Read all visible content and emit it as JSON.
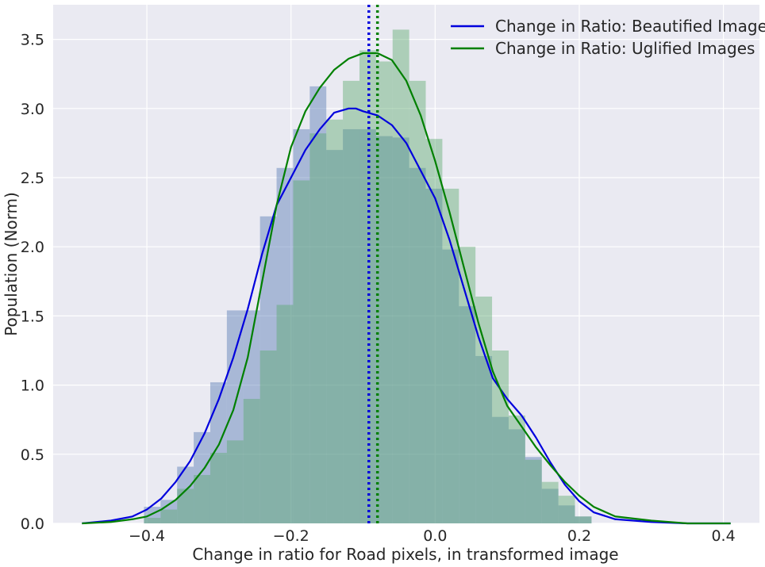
{
  "chart_data": {
    "type": "histogram",
    "xlabel": "Change in ratio for  Road pixels, in transformed image",
    "ylabel": "Population (Norm)",
    "xlim": [
      -0.53,
      0.45
    ],
    "ylim": [
      0,
      3.75
    ],
    "xticks": [
      -0.4,
      -0.2,
      0.0,
      0.2,
      0.4
    ],
    "xtick_labels": [
      "−0.4",
      "−0.2",
      "0.0",
      "0.2",
      "0.4"
    ],
    "yticks": [
      0.0,
      0.5,
      1.0,
      1.5,
      2.0,
      2.5,
      3.0,
      3.5
    ],
    "ytick_labels": [
      "0.0",
      "0.5",
      "1.0",
      "1.5",
      "2.0",
      "2.5",
      "3.0",
      "3.5"
    ],
    "grid": true,
    "legend_position": "upper-right",
    "bin_edges": [
      -0.404,
      -0.381,
      -0.358,
      -0.335,
      -0.312,
      -0.289,
      -0.266,
      -0.243,
      -0.22,
      -0.197,
      -0.174,
      -0.151,
      -0.128,
      -0.105,
      -0.082,
      -0.059,
      -0.036,
      -0.013,
      0.01,
      0.033,
      0.056,
      0.079,
      0.102,
      0.125,
      0.148,
      0.171,
      0.194,
      0.217
    ],
    "series": [
      {
        "name": "Change in Ratio: Beautified Images",
        "line_color": "#0000dd",
        "bar_color": "#4c72b0",
        "mean": -0.092,
        "hist": [
          0.12,
          0.17,
          0.41,
          0.66,
          1.02,
          1.54,
          1.54,
          2.22,
          2.57,
          2.85,
          3.16,
          2.7,
          2.85,
          2.85,
          2.8,
          2.79,
          2.57,
          2.42,
          1.98,
          1.57,
          1.21,
          0.77,
          0.68,
          0.48,
          0.25,
          0.13,
          0.05
        ],
        "kde_x": [
          -0.49,
          -0.45,
          -0.42,
          -0.4,
          -0.38,
          -0.36,
          -0.34,
          -0.32,
          -0.3,
          -0.28,
          -0.26,
          -0.24,
          -0.22,
          -0.2,
          -0.18,
          -0.16,
          -0.14,
          -0.12,
          -0.11,
          -0.1,
          -0.08,
          -0.06,
          -0.04,
          -0.02,
          0.0,
          0.02,
          0.04,
          0.06,
          0.08,
          0.1,
          0.12,
          0.14,
          0.16,
          0.18,
          0.2,
          0.22,
          0.25,
          0.3,
          0.35,
          0.41
        ],
        "kde_y": [
          0.0,
          0.02,
          0.05,
          0.1,
          0.18,
          0.3,
          0.45,
          0.65,
          0.9,
          1.2,
          1.55,
          1.95,
          2.3,
          2.5,
          2.7,
          2.85,
          2.97,
          3.0,
          3.0,
          2.98,
          2.95,
          2.88,
          2.75,
          2.55,
          2.35,
          2.05,
          1.7,
          1.35,
          1.05,
          0.9,
          0.78,
          0.62,
          0.44,
          0.28,
          0.16,
          0.08,
          0.03,
          0.01,
          0.0,
          0.0
        ]
      },
      {
        "name": "Change in Ratio: Uglified Images",
        "line_color": "#008000",
        "bar_color": "#55a868",
        "mean": -0.08,
        "hist": [
          0.04,
          0.1,
          0.25,
          0.35,
          0.51,
          0.6,
          0.9,
          1.25,
          1.58,
          2.48,
          2.82,
          2.92,
          3.2,
          3.42,
          3.34,
          3.57,
          3.2,
          2.78,
          2.42,
          2.0,
          1.64,
          1.25,
          0.78,
          0.46,
          0.3,
          0.2,
          0.05
        ],
        "kde_x": [
          -0.49,
          -0.45,
          -0.42,
          -0.4,
          -0.38,
          -0.36,
          -0.34,
          -0.32,
          -0.3,
          -0.28,
          -0.26,
          -0.24,
          -0.22,
          -0.2,
          -0.18,
          -0.16,
          -0.14,
          -0.12,
          -0.1,
          -0.08,
          -0.06,
          -0.04,
          -0.02,
          0.0,
          0.02,
          0.04,
          0.06,
          0.08,
          0.1,
          0.12,
          0.14,
          0.16,
          0.18,
          0.2,
          0.22,
          0.25,
          0.3,
          0.35,
          0.41
        ],
        "kde_y": [
          0.0,
          0.01,
          0.03,
          0.05,
          0.1,
          0.17,
          0.27,
          0.4,
          0.57,
          0.82,
          1.2,
          1.75,
          2.3,
          2.72,
          2.98,
          3.15,
          3.28,
          3.36,
          3.4,
          3.4,
          3.35,
          3.2,
          2.95,
          2.62,
          2.25,
          1.85,
          1.45,
          1.1,
          0.85,
          0.7,
          0.55,
          0.42,
          0.3,
          0.2,
          0.12,
          0.05,
          0.02,
          0.0,
          0.0
        ]
      }
    ]
  }
}
